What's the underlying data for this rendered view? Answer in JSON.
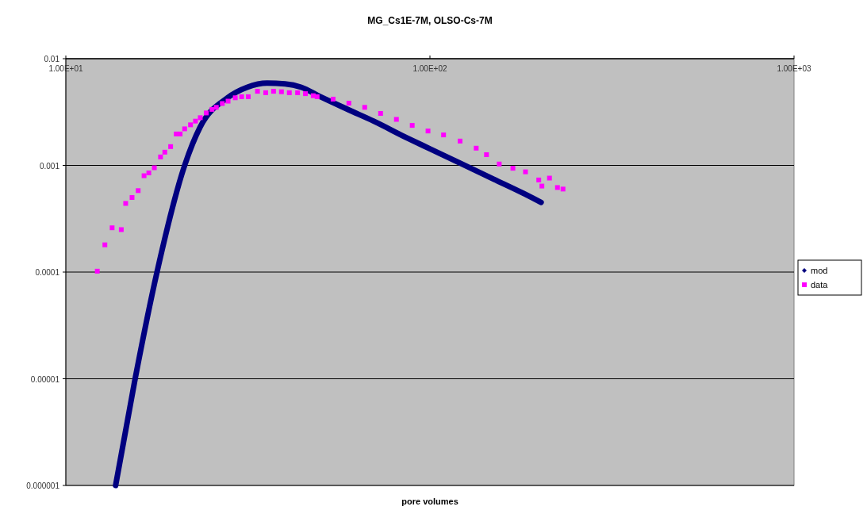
{
  "chart_data": {
    "type": "scatter",
    "title": "MG_Cs1E-7M, OLSO-Cs-7M",
    "xlabel": "pore volumes",
    "log": "xy",
    "grid": "y",
    "legend": "right",
    "xlim": [
      10,
      1000
    ],
    "xticks": [
      {
        "value": 10,
        "label": "1.00E+01"
      },
      {
        "value": 100,
        "label": "1.00E+02"
      },
      {
        "value": 1000,
        "label": "1.00E+03"
      }
    ],
    "ylim": [
      1e-06,
      0.01
    ],
    "yticks": [
      {
        "value": 1e-06,
        "label": "0.000001"
      },
      {
        "value": 1e-05,
        "label": "0.00001"
      },
      {
        "value": 0.0001,
        "label": "0.0001"
      },
      {
        "value": 0.001,
        "label": "0.001"
      },
      {
        "value": 0.01,
        "label": "0.01"
      }
    ],
    "series": [
      {
        "name": "mod",
        "type": "line",
        "line_style": "solid",
        "color": "#000080",
        "x": [
          13.7,
          15.5,
          17.8,
          21.2,
          23.4,
          27.8,
          31.5,
          35.7,
          40,
          44.3,
          50,
          60,
          70,
          86.5,
          100,
          121,
          150,
          180,
          202
        ],
        "values": [
          1e-06,
          1e-05,
          0.0001,
          0.001,
          0.0023,
          0.0043,
          0.0054,
          0.0059,
          0.0058,
          0.0054,
          0.0044,
          0.0033,
          0.0026,
          0.00181,
          0.00143,
          0.00105,
          0.00074,
          0.00055,
          0.00045
        ]
      },
      {
        "name": "data",
        "type": "scatter",
        "marker": "square",
        "color": "#ff00ff",
        "x": [
          12.2,
          12.8,
          13.4,
          14.2,
          14.6,
          15.2,
          15.8,
          16.4,
          16.9,
          17.5,
          18.2,
          18.7,
          19.4,
          20.1,
          20.6,
          21.2,
          22,
          22.7,
          23.4,
          24.3,
          25.2,
          25.9,
          26.9,
          27.9,
          29.2,
          30.4,
          31.7,
          33.6,
          35.4,
          37.2,
          39.1,
          41.1,
          43.3,
          45.5,
          47.8,
          49,
          54.2,
          59.9,
          66.2,
          73.2,
          80.9,
          89.4,
          98.8,
          109,
          121,
          134,
          143,
          155,
          169,
          183,
          199,
          203,
          213,
          224,
          232
        ],
        "values": [
          0.000102,
          0.00018,
          0.00026,
          0.00025,
          0.00044,
          0.0005,
          0.00058,
          0.0008,
          0.00085,
          0.00095,
          0.0012,
          0.00133,
          0.0015,
          0.00197,
          0.00197,
          0.0022,
          0.0024,
          0.0026,
          0.0028,
          0.0031,
          0.00335,
          0.0035,
          0.0038,
          0.004,
          0.0043,
          0.0044,
          0.0044,
          0.00495,
          0.0048,
          0.00495,
          0.0049,
          0.0048,
          0.0048,
          0.0047,
          0.0045,
          0.0044,
          0.00418,
          0.00383,
          0.0035,
          0.00307,
          0.0027,
          0.00237,
          0.0021,
          0.00193,
          0.00169,
          0.00145,
          0.00126,
          0.00103,
          0.00094,
          0.00087,
          0.00073,
          0.00064,
          0.00076,
          0.00062,
          0.0006
        ]
      }
    ]
  }
}
